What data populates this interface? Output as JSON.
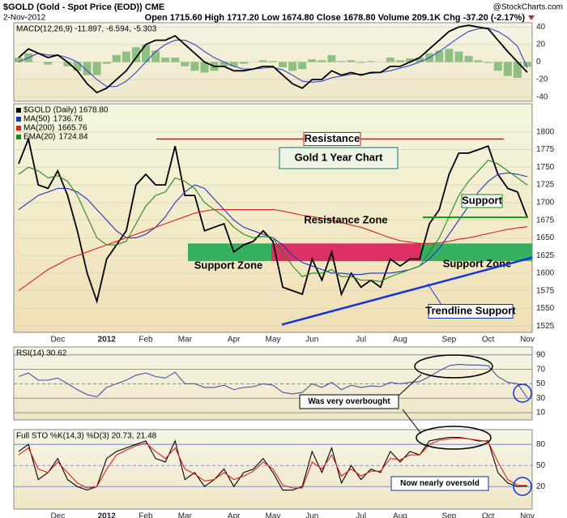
{
  "header": {
    "symbol": "$GOLD (Gold - Spot Price (EOD)) CME",
    "source": "@StockCharts.com",
    "date": "2-Nov-2012",
    "quote": "Open 1715.60 High 1717.20 Low 1674.80 Close 1678.80 Volume 209.1K Chg -37.20 (-2.17%)"
  },
  "chart_data": [
    {
      "type": "line",
      "title": "MACD(12,26,9) -11.897, -6.594, -5.303",
      "ylim": [
        -45,
        45
      ],
      "yticks": [
        40,
        20,
        0,
        -20,
        -40
      ],
      "series": [
        {
          "type": "bar",
          "color": "#3c9a3c",
          "values": [
            5,
            10,
            0,
            -3,
            0,
            -5,
            -10,
            -15,
            -15,
            -2,
            8,
            12,
            17,
            20,
            13,
            5,
            5,
            -5,
            -10,
            -12,
            -10,
            -5,
            -5,
            -2,
            0,
            2,
            1,
            -6,
            -10,
            -8,
            3,
            2,
            8,
            1,
            2,
            -1,
            1,
            0,
            5,
            2,
            4,
            5,
            10,
            13,
            15,
            12,
            7,
            2,
            -1,
            -10,
            -16,
            -18,
            -5.303
          ]
        },
        {
          "type": "line",
          "color": "#3344cc",
          "values": [
            0,
            5,
            10,
            8,
            8,
            5,
            0,
            -10,
            -20,
            -28,
            -28,
            -22,
            -12,
            0,
            12,
            20,
            25,
            25,
            20,
            12,
            5,
            0,
            -5,
            -8,
            -8,
            -7,
            -6,
            -9,
            -15,
            -22,
            -23,
            -22,
            -18,
            -16,
            -14,
            -14,
            -13,
            -12,
            -10,
            -7,
            -4,
            0,
            5,
            12,
            20,
            28,
            35,
            38,
            39,
            35,
            28,
            18,
            -6.594
          ]
        },
        {
          "type": "line",
          "color": "#000000",
          "values": [
            5,
            15,
            10,
            5,
            8,
            0,
            -10,
            -25,
            -35,
            -30,
            -20,
            -10,
            5,
            20,
            25,
            25,
            30,
            20,
            10,
            0,
            -5,
            -5,
            -10,
            -10,
            -8,
            -5,
            -5,
            -15,
            -25,
            -30,
            -20,
            -20,
            -10,
            -15,
            -12,
            -15,
            -12,
            -12,
            -5,
            -5,
            0,
            5,
            15,
            25,
            35,
            40,
            42,
            40,
            38,
            25,
            12,
            0,
            -11.897
          ]
        }
      ]
    },
    {
      "type": "line",
      "ylim": [
        1516,
        1840
      ],
      "yticks": [
        1525,
        1550,
        1575,
        1600,
        1625,
        1650,
        1675,
        1700,
        1725,
        1750,
        1775,
        1800
      ],
      "categories": [
        null,
        null,
        null,
        null,
        "Dec",
        null,
        null,
        null,
        null,
        "2012",
        null,
        null,
        null,
        "Feb",
        null,
        null,
        null,
        "Mar",
        null,
        null,
        null,
        null,
        "Apr",
        null,
        null,
        null,
        "May",
        null,
        null,
        null,
        "Jun",
        null,
        null,
        null,
        null,
        "Jul",
        null,
        null,
        null,
        "Aug",
        null,
        null,
        null,
        null,
        "Sep",
        null,
        null,
        null,
        "Oct",
        null,
        null,
        null,
        "Nov"
      ],
      "series": [
        {
          "name": "$GOLD (Daily) 1678.80",
          "color": "#000000",
          "values": [
            1755,
            1790,
            1725,
            1720,
            1745,
            1710,
            1660,
            1600,
            1560,
            1620,
            1640,
            1660,
            1725,
            1740,
            1725,
            1725,
            1780,
            1710,
            1710,
            1660,
            1665,
            1670,
            1630,
            1640,
            1645,
            1660,
            1645,
            1580,
            1575,
            1570,
            1620,
            1590,
            1630,
            1570,
            1600,
            1580,
            1590,
            1580,
            1620,
            1610,
            1620,
            1620,
            1670,
            1690,
            1740,
            1770,
            1770,
            1775,
            1780,
            1740,
            1720,
            1715,
            1678.8
          ]
        },
        {
          "name": "MA(50)",
          "color": "#2233bb",
          "values": [
            1690,
            1700,
            1710,
            1715,
            1720,
            1720,
            1715,
            1705,
            1690,
            1675,
            1660,
            1650,
            1650,
            1655,
            1665,
            1680,
            1700,
            1715,
            1725,
            1720,
            1705,
            1690,
            1675,
            1665,
            1660,
            1655,
            1650,
            1640,
            1625,
            1615,
            1610,
            1605,
            1600,
            1600,
            1598,
            1598,
            1600,
            1600,
            1600,
            1602,
            1605,
            1610,
            1620,
            1635,
            1655,
            1675,
            1695,
            1715,
            1730,
            1740,
            1742,
            1740,
            1736.76
          ]
        },
        {
          "name": "MA(200)",
          "color": "#dd2222",
          "values": [
            1575,
            1585,
            1595,
            1605,
            1612,
            1620,
            1625,
            1630,
            1635,
            1640,
            1645,
            1650,
            1655,
            1660,
            1665,
            1670,
            1675,
            1680,
            1685,
            1688,
            1690,
            1690,
            1690,
            1690,
            1690,
            1690,
            1690,
            1688,
            1685,
            1682,
            1680,
            1678,
            1675,
            1672,
            1668,
            1665,
            1660,
            1655,
            1650,
            1646,
            1644,
            1642,
            1642,
            1643,
            1645,
            1648,
            1650,
            1653,
            1656,
            1659,
            1662,
            1664,
            1665.76
          ]
        },
        {
          "name": "EMA(20)",
          "color": "#228822",
          "values": [
            1740,
            1750,
            1745,
            1735,
            1738,
            1730,
            1710,
            1680,
            1650,
            1640,
            1640,
            1645,
            1670,
            1695,
            1710,
            1715,
            1735,
            1730,
            1720,
            1700,
            1690,
            1680,
            1665,
            1655,
            1650,
            1652,
            1650,
            1630,
            1610,
            1595,
            1600,
            1600,
            1605,
            1595,
            1595,
            1590,
            1590,
            1588,
            1595,
            1600,
            1605,
            1610,
            1630,
            1650,
            1680,
            1710,
            1730,
            1745,
            1760,
            1755,
            1745,
            1735,
            1724.84
          ]
        }
      ],
      "annotations": [
        {
          "text": "Resistance",
          "y": 1790
        },
        {
          "text": "Gold 1 Year Chart"
        },
        {
          "text": "Resistance Zone",
          "y": [
            1617,
            1642
          ]
        },
        {
          "text": "Support Zone",
          "y": [
            1617,
            1642
          ]
        },
        {
          "text": "Support Zone"
        },
        {
          "text": "Support",
          "y": 1679
        },
        {
          "text": "Trendline Support",
          "y": [
            1527,
            1622
          ]
        }
      ]
    },
    {
      "type": "line",
      "title": "RSI(14) 30.62",
      "ylim": [
        0,
        101
      ],
      "yticks": [
        90,
        70,
        50,
        30,
        10
      ],
      "series": [
        {
          "color": "#4455aa",
          "values": [
            60,
            65,
            55,
            55,
            58,
            50,
            42,
            35,
            32,
            45,
            50,
            55,
            62,
            65,
            60,
            58,
            66,
            50,
            50,
            45,
            45,
            48,
            42,
            45,
            46,
            50,
            48,
            38,
            36,
            38,
            50,
            45,
            52,
            42,
            48,
            45,
            47,
            46,
            52,
            50,
            52,
            53,
            60,
            68,
            75,
            77,
            76,
            76,
            75,
            60,
            52,
            50,
            30.62
          ]
        }
      ],
      "annotations": [
        {
          "text": "Was very overbought"
        }
      ]
    },
    {
      "type": "line",
      "title": "Full STO %K(14,3) %D(3) 20.73, 21.48",
      "ylim": [
        -12,
        101
      ],
      "yticks": [
        80,
        50,
        20
      ],
      "categories": [
        null,
        null,
        null,
        null,
        "Dec",
        null,
        null,
        null,
        null,
        "2012",
        null,
        null,
        null,
        "Feb",
        null,
        null,
        null,
        "Mar",
        null,
        null,
        null,
        null,
        "Apr",
        null,
        null,
        null,
        "May",
        null,
        null,
        null,
        "Jun",
        null,
        null,
        null,
        null,
        "Jul",
        null,
        null,
        null,
        "Aug",
        null,
        null,
        null,
        null,
        "Sep",
        null,
        null,
        null,
        "Oct",
        null,
        null,
        null,
        "Nov"
      ],
      "series": [
        {
          "color": "#000000",
          "values": [
            70,
            80,
            30,
            40,
            60,
            30,
            20,
            15,
            20,
            60,
            70,
            75,
            80,
            85,
            60,
            55,
            85,
            30,
            40,
            20,
            30,
            45,
            20,
            40,
            45,
            60,
            40,
            15,
            15,
            20,
            70,
            40,
            75,
            25,
            50,
            30,
            45,
            40,
            70,
            55,
            70,
            65,
            85,
            88,
            90,
            90,
            88,
            85,
            85,
            40,
            25,
            20,
            20.73
          ]
        },
        {
          "color": "#dd2222",
          "values": [
            65,
            75,
            45,
            40,
            55,
            40,
            25,
            18,
            20,
            45,
            65,
            72,
            78,
            82,
            70,
            60,
            75,
            45,
            38,
            28,
            30,
            40,
            30,
            35,
            42,
            55,
            45,
            22,
            18,
            18,
            55,
            45,
            65,
            35,
            45,
            35,
            42,
            42,
            60,
            58,
            65,
            65,
            80,
            86,
            88,
            89,
            88,
            86,
            84,
            55,
            30,
            22,
            21.48
          ]
        }
      ],
      "annotations": [
        {
          "text": "Now nearly oversold"
        }
      ]
    }
  ]
}
